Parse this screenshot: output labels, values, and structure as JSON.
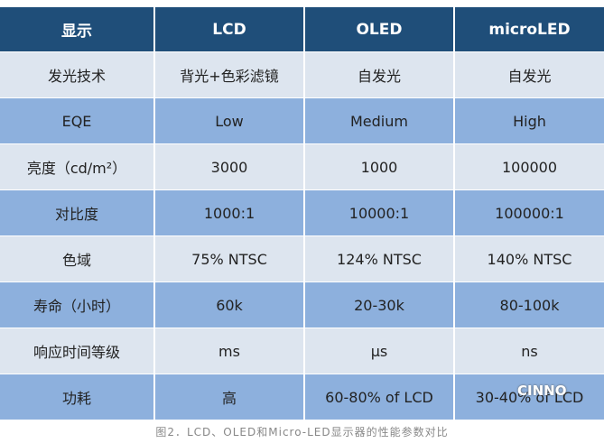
{
  "table": {
    "header": [
      "显示",
      "LCD",
      "OLED",
      "microLED"
    ],
    "rows": [
      [
        "发光技术",
        "背光+色彩滤镜",
        "自发光",
        "自发光"
      ],
      [
        "EQE",
        "Low",
        "Medium",
        "High"
      ],
      [
        "亮度（cd/m²）",
        "3000",
        "1000",
        "100000"
      ],
      [
        "对比度",
        "1000:1",
        "10000:1",
        "100000:1"
      ],
      [
        "色域",
        "75% NTSC",
        "124% NTSC",
        "140% NTSC"
      ],
      [
        "寿命（小时）",
        "60k",
        "20-30k",
        "80-100k"
      ],
      [
        "响应时间等级",
        "ms",
        "μs",
        "ns"
      ],
      [
        "功耗",
        "高",
        "60-80% of LCD",
        "30-40% of LCD"
      ]
    ]
  },
  "caption": "图2．LCD、OLED和Micro-LED显示器的性能参数对比",
  "watermark": "CINNO"
}
